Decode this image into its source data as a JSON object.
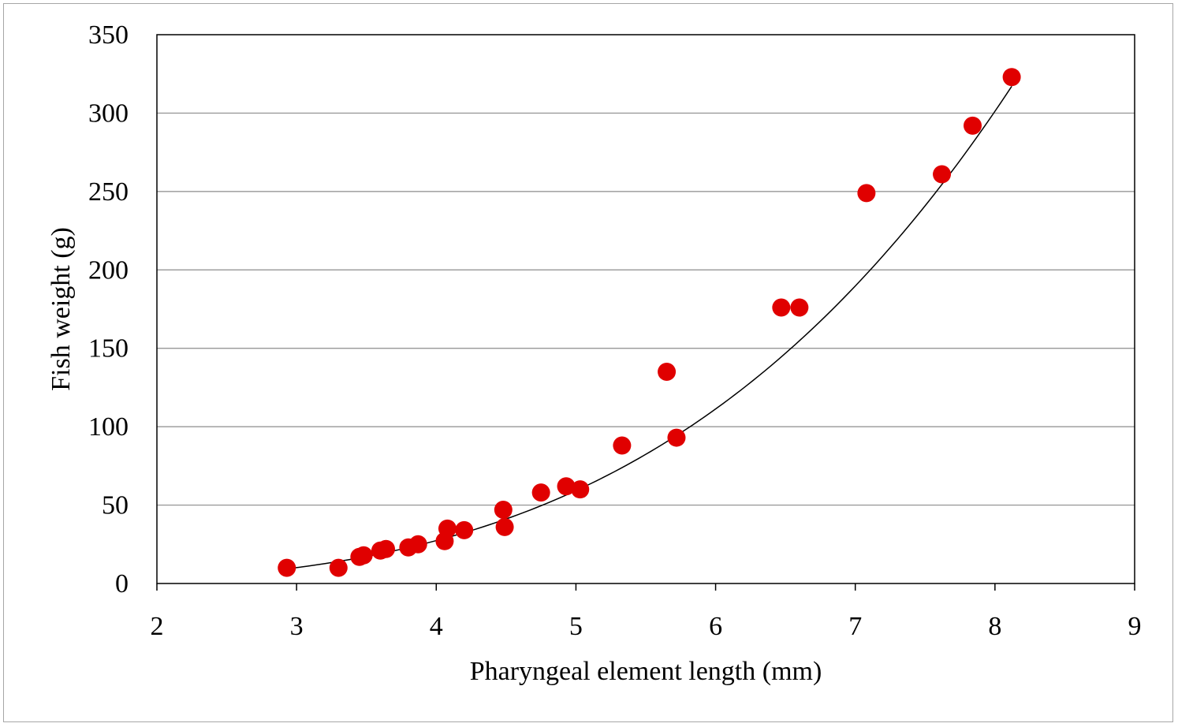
{
  "chart_data": {
    "type": "scatter",
    "title": "",
    "xlabel": "Pharyngeal element length (mm)",
    "ylabel": "Fish weight (g)",
    "xlim": [
      2,
      9
    ],
    "ylim": [
      0,
      350
    ],
    "x_ticks": [
      "2",
      "3",
      "4",
      "5",
      "6",
      "7",
      "8",
      "9"
    ],
    "y_ticks": [
      "0",
      "50",
      "100",
      "150",
      "200",
      "250",
      "300",
      "350"
    ],
    "grid": "horizontal",
    "legend": "none",
    "point_color": "#e00000",
    "trendline": {
      "type": "power",
      "color": "#000000",
      "coefficient": 0.226,
      "exponent": 3.46,
      "x_range": [
        2.95,
        8.12
      ]
    },
    "series": [
      {
        "x": [
          2.93,
          3.3,
          3.45,
          3.48,
          3.6,
          3.64,
          3.8,
          3.87,
          4.06,
          4.08,
          4.2,
          4.48,
          4.49,
          4.75,
          4.93,
          5.03,
          5.33,
          5.65,
          5.72,
          6.47,
          6.6,
          7.08,
          7.62,
          7.84,
          8.12
        ],
        "y": [
          10,
          10,
          17,
          18,
          21,
          22,
          23,
          25,
          27,
          35,
          34,
          47,
          36,
          58,
          62,
          60,
          88,
          135,
          93,
          176,
          176,
          249,
          261,
          292,
          323
        ]
      }
    ]
  }
}
